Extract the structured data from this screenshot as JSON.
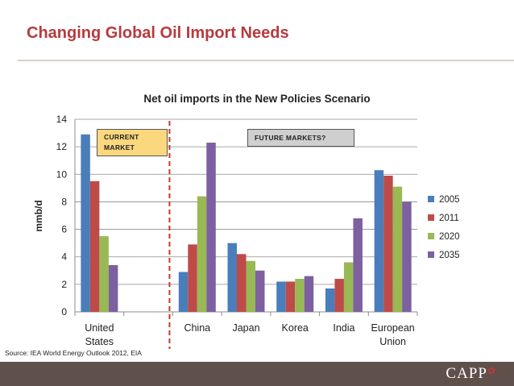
{
  "slide": {
    "title": "Changing Global Oil Import Needs",
    "source": "Source: IEA World Energy Outlook 2012, EIA",
    "logo_text": "CAPP"
  },
  "callouts": {
    "current": "CURRENT MARKET",
    "future": "FUTURE MARKETS?"
  },
  "colors": {
    "title": "#b83a3d",
    "divider": "#c0392b",
    "footer": "#5f504c"
  },
  "chart_data": {
    "type": "bar",
    "title": "Net oil imports in the New Policies Scenario",
    "xlabel": "",
    "ylabel": "mmb/d",
    "ylim": [
      0,
      14
    ],
    "yticks": [
      0,
      2,
      4,
      6,
      8,
      10,
      12,
      14
    ],
    "grid": true,
    "legend": "right",
    "categories": [
      "United States",
      "",
      "China",
      "Japan",
      "Korea",
      "India",
      "European Union"
    ],
    "series": [
      {
        "name": "2005",
        "color": "#4a7ebb",
        "values": [
          12.9,
          null,
          2.9,
          5.0,
          2.2,
          1.7,
          10.3
        ]
      },
      {
        "name": "2011",
        "color": "#be4b48",
        "values": [
          9.5,
          null,
          4.9,
          4.2,
          2.2,
          2.4,
          9.9
        ]
      },
      {
        "name": "2020",
        "color": "#98b954",
        "values": [
          5.5,
          null,
          8.4,
          3.7,
          2.4,
          3.6,
          9.1
        ]
      },
      {
        "name": "2035",
        "color": "#7d60a0",
        "values": [
          3.4,
          null,
          12.3,
          3.0,
          2.6,
          6.8,
          8.0
        ]
      }
    ]
  }
}
